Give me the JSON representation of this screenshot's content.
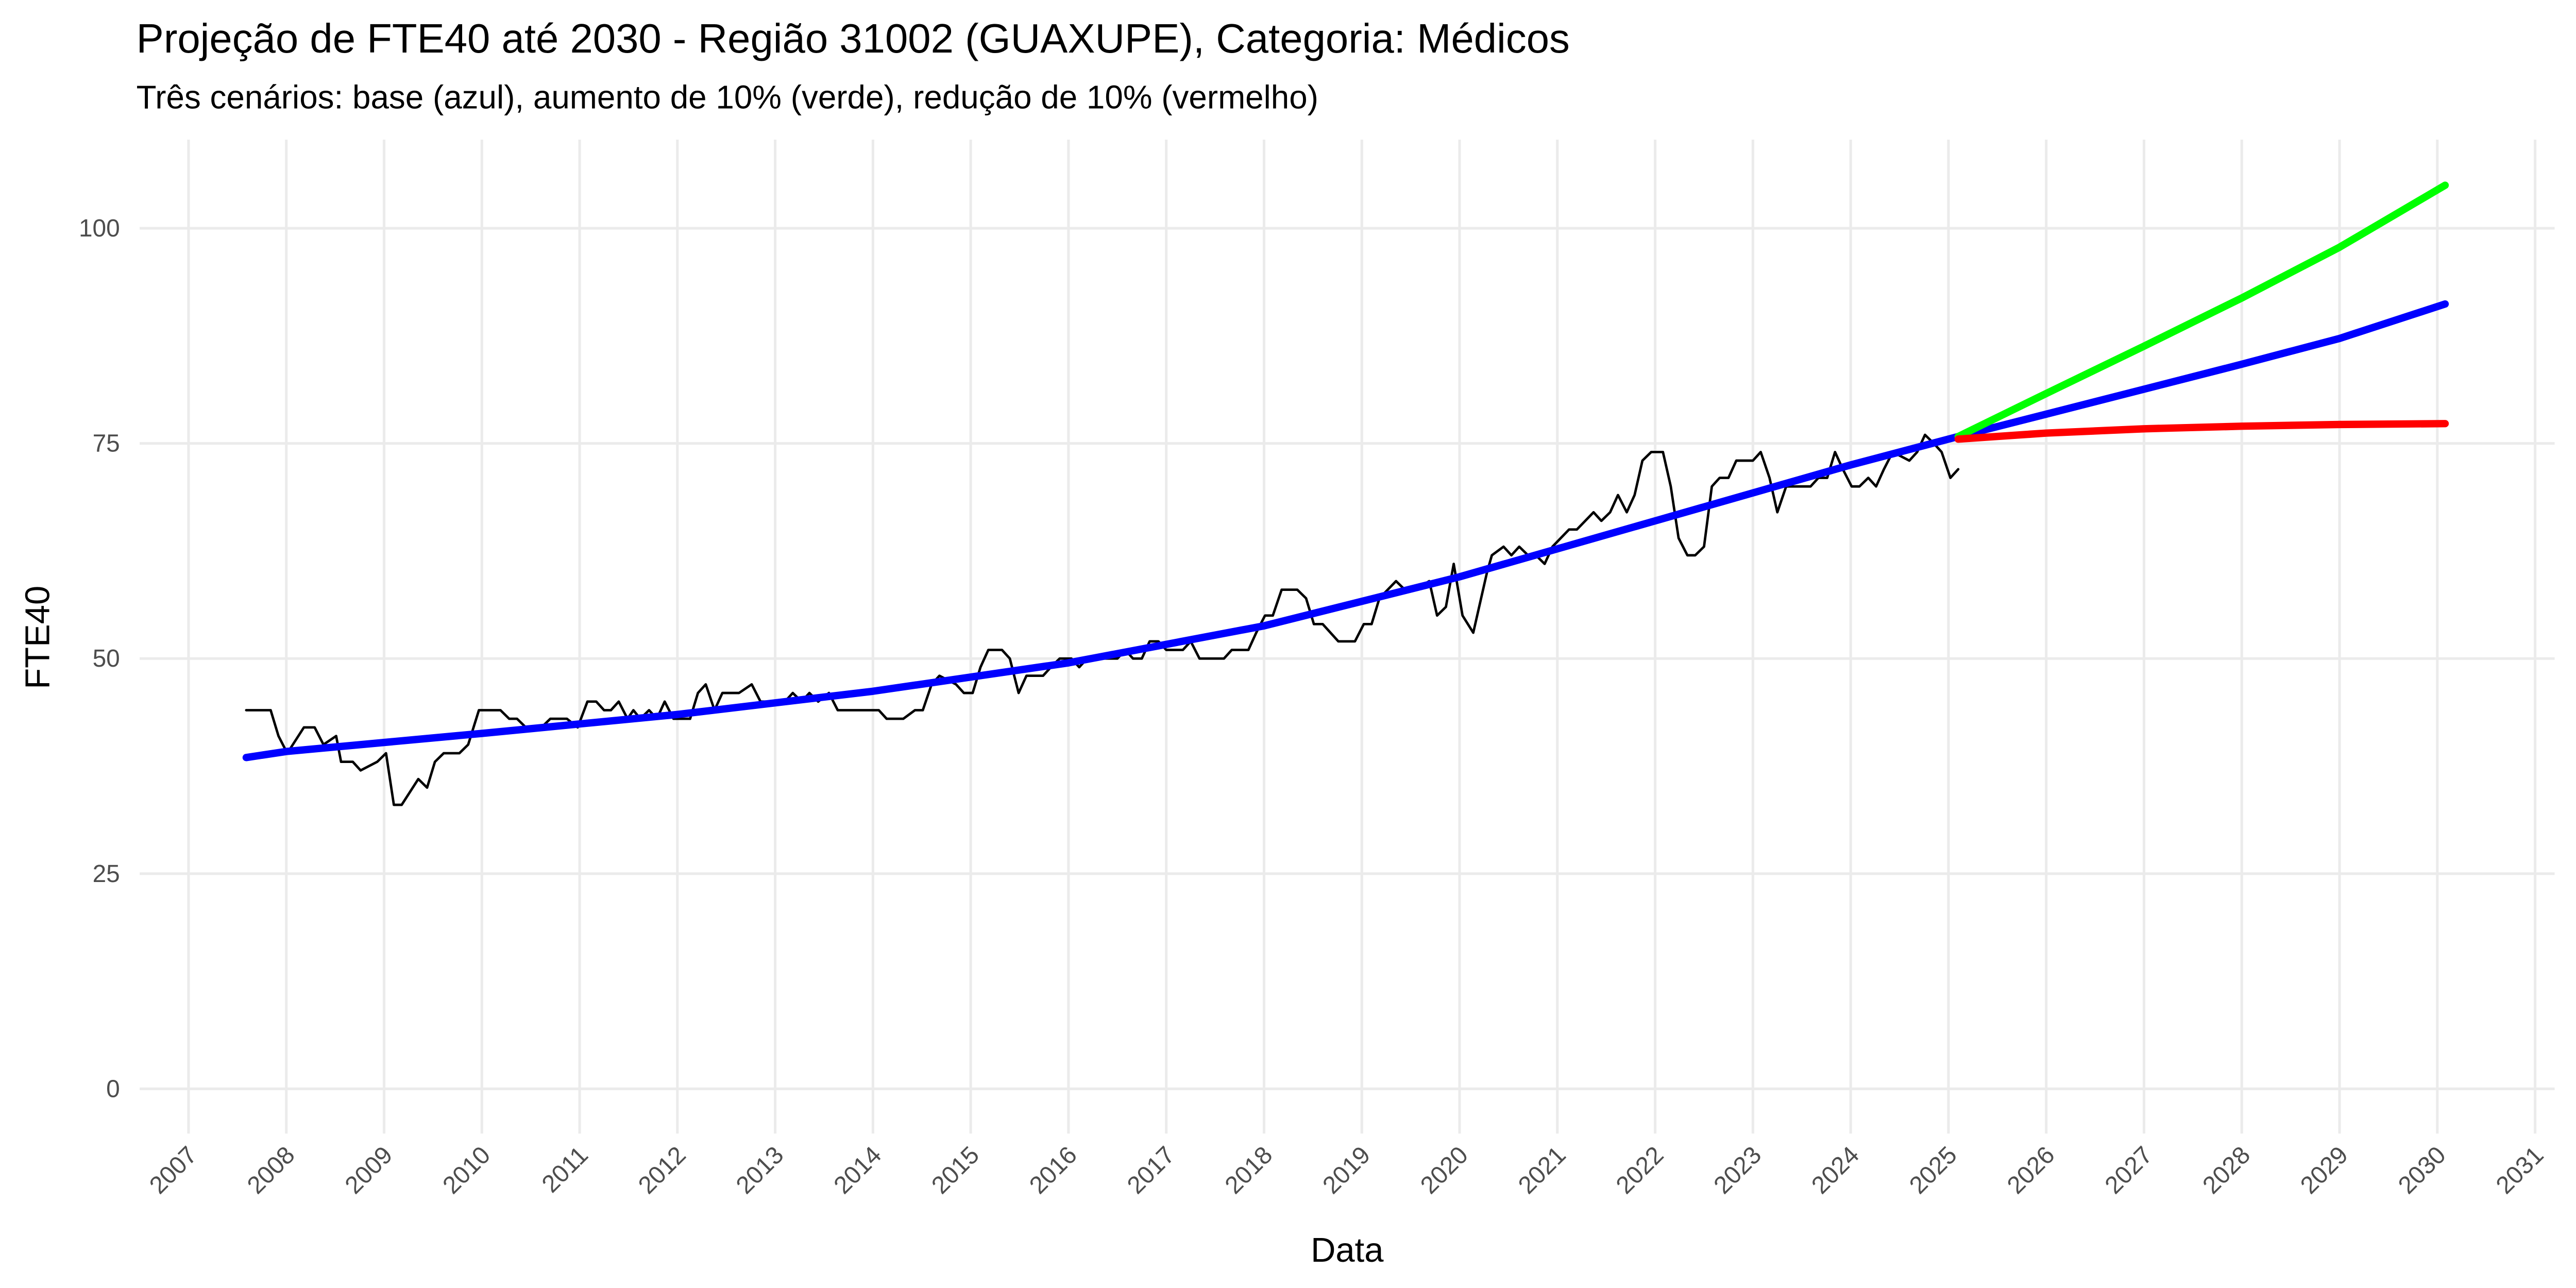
{
  "chart_data": {
    "type": "line",
    "title": "Projeção de FTE40 até 2030 - Região 31002 (GUAXUPE), Categoria: Médicos",
    "subtitle": "Três cenários: base (azul), aumento de 10% (verde), redução de 10% (vermelho)",
    "x_label": "Data",
    "y_label": "FTE40",
    "xlim": [
      2006.5,
      2031.2
    ],
    "ylim": [
      -5.2,
      110.3
    ],
    "xticks": [
      2007,
      2008,
      2009,
      2010,
      2011,
      2012,
      2013,
      2014,
      2015,
      2016,
      2017,
      2018,
      2019,
      2020,
      2021,
      2022,
      2023,
      2024,
      2025,
      2026,
      2027,
      2028,
      2029,
      2030,
      2031
    ],
    "yticks": [
      0,
      25,
      50,
      75,
      100
    ],
    "grid": true,
    "series": [
      {
        "color": "#000000",
        "width": 1.5,
        "x": [
          2007.59,
          2007.84,
          2007.92,
          2008.01,
          2008.18,
          2008.29,
          2008.38,
          2008.51,
          2008.56,
          2008.68,
          2008.76,
          2008.93,
          2009.02,
          2009.1,
          2009.18,
          2009.35,
          2009.44,
          2009.52,
          2009.61,
          2009.77,
          2009.86,
          2009.97,
          2010.19,
          2010.28,
          2010.36,
          2010.45,
          2010.61,
          2010.7,
          2010.87,
          2010.98,
          2011.08,
          2011.17,
          2011.25,
          2011.32,
          2011.4,
          2011.49,
          2011.55,
          2011.62,
          2011.71,
          2011.79,
          2011.87,
          2011.96,
          2012.13,
          2012.21,
          2012.29,
          2012.38,
          2012.46,
          2012.63,
          2012.76,
          2012.85,
          2012.97,
          2013.1,
          2013.18,
          2013.27,
          2013.35,
          2013.44,
          2013.55,
          2013.64,
          2014.06,
          2014.14,
          2014.31,
          2014.43,
          2014.51,
          2014.6,
          2014.68,
          2014.85,
          2014.93,
          2015.02,
          2015.1,
          2015.18,
          2015.32,
          2015.4,
          2015.49,
          2015.57,
          2015.74,
          2015.82,
          2015.91,
          2016.03,
          2016.11,
          2016.19,
          2016.5,
          2016.58,
          2016.66,
          2016.75,
          2016.83,
          2016.92,
          2017.0,
          2017.17,
          2017.25,
          2017.34,
          2017.59,
          2017.67,
          2017.84,
          2017.92,
          2018.01,
          2018.09,
          2018.18,
          2018.34,
          2018.43,
          2018.51,
          2018.6,
          2018.76,
          2018.93,
          2019.02,
          2019.1,
          2019.18,
          2019.35,
          2019.44,
          2019.55,
          2019.69,
          2019.77,
          2019.86,
          2019.94,
          2020.03,
          2020.14,
          2020.28,
          2020.33,
          2020.45,
          2020.53,
          2020.61,
          2020.7,
          2020.78,
          2020.87,
          2020.95,
          2021.12,
          2021.2,
          2021.37,
          2021.45,
          2021.54,
          2021.62,
          2021.71,
          2021.79,
          2021.87,
          2021.96,
          2022.08,
          2022.16,
          2022.24,
          2022.33,
          2022.41,
          2022.5,
          2022.58,
          2022.66,
          2022.75,
          2022.83,
          2023.0,
          2023.08,
          2023.17,
          2023.25,
          2023.34,
          2023.59,
          2023.67,
          2023.76,
          2023.84,
          2023.92,
          2024.01,
          2024.09,
          2024.18,
          2024.26,
          2024.34,
          2024.43,
          2024.6,
          2024.68,
          2024.76,
          2024.85,
          2024.93,
          2025.02,
          2025.1
        ],
        "values": [
          44,
          44,
          41,
          39,
          42,
          42,
          40,
          41,
          38,
          38,
          37,
          38,
          39,
          33,
          33,
          36,
          35,
          38,
          39,
          39,
          40,
          44,
          44,
          43,
          43,
          42,
          42,
          43,
          43,
          42,
          45,
          45,
          44,
          44,
          45,
          43,
          44,
          43,
          44,
          43,
          45,
          43,
          43,
          46,
          47,
          44,
          46,
          46,
          47,
          45,
          45,
          45,
          46,
          45,
          46,
          45,
          46,
          44,
          44,
          43,
          43,
          44,
          44,
          47,
          48,
          47,
          46,
          46,
          49,
          51,
          51,
          50,
          46,
          48,
          48,
          49,
          50,
          50,
          49,
          50,
          50,
          51,
          50,
          50,
          52,
          52,
          51,
          51,
          52,
          50,
          50,
          51,
          51,
          53,
          55,
          55,
          58,
          58,
          57,
          54,
          54,
          52,
          52,
          54,
          54,
          57,
          59,
          58,
          58,
          59,
          55,
          56,
          61,
          55,
          53,
          60,
          62,
          63,
          62,
          63,
          62,
          62,
          61,
          63,
          65,
          65,
          67,
          66,
          67,
          69,
          67,
          69,
          73,
          74,
          74,
          70,
          64,
          62,
          62,
          63,
          70,
          71,
          71,
          73,
          73,
          74,
          71,
          67,
          70,
          70,
          71,
          71,
          74,
          72,
          70,
          70,
          71,
          70,
          72,
          74,
          73,
          74,
          76,
          75,
          74,
          71,
          72
        ]
      },
      {
        "color": "#0000ff",
        "width": 4.5,
        "x": [
          2007.59,
          2008,
          2010,
          2012,
          2014,
          2016,
          2018,
          2020,
          2022,
          2024,
          2025.1,
          2026,
          2027,
          2028,
          2029,
          2030.08
        ],
        "values": [
          38.5,
          39.2,
          41.3,
          43.5,
          46.2,
          49.5,
          53.8,
          59.5,
          66,
          72.5,
          75.8,
          78.4,
          81.3,
          84.2,
          87.2,
          91.2
        ]
      },
      {
        "color": "#00ff00",
        "width": 4.5,
        "x": [
          2025.1,
          2026,
          2027,
          2028,
          2029,
          2030.08
        ],
        "values": [
          75.8,
          80.8,
          86.3,
          91.9,
          97.8,
          105
        ]
      },
      {
        "color": "#ff0000",
        "width": 4.5,
        "x": [
          2025.1,
          2026,
          2027,
          2028,
          2029,
          2030.08
        ],
        "values": [
          75.5,
          76.2,
          76.7,
          77.0,
          77.2,
          77.3
        ]
      }
    ]
  }
}
